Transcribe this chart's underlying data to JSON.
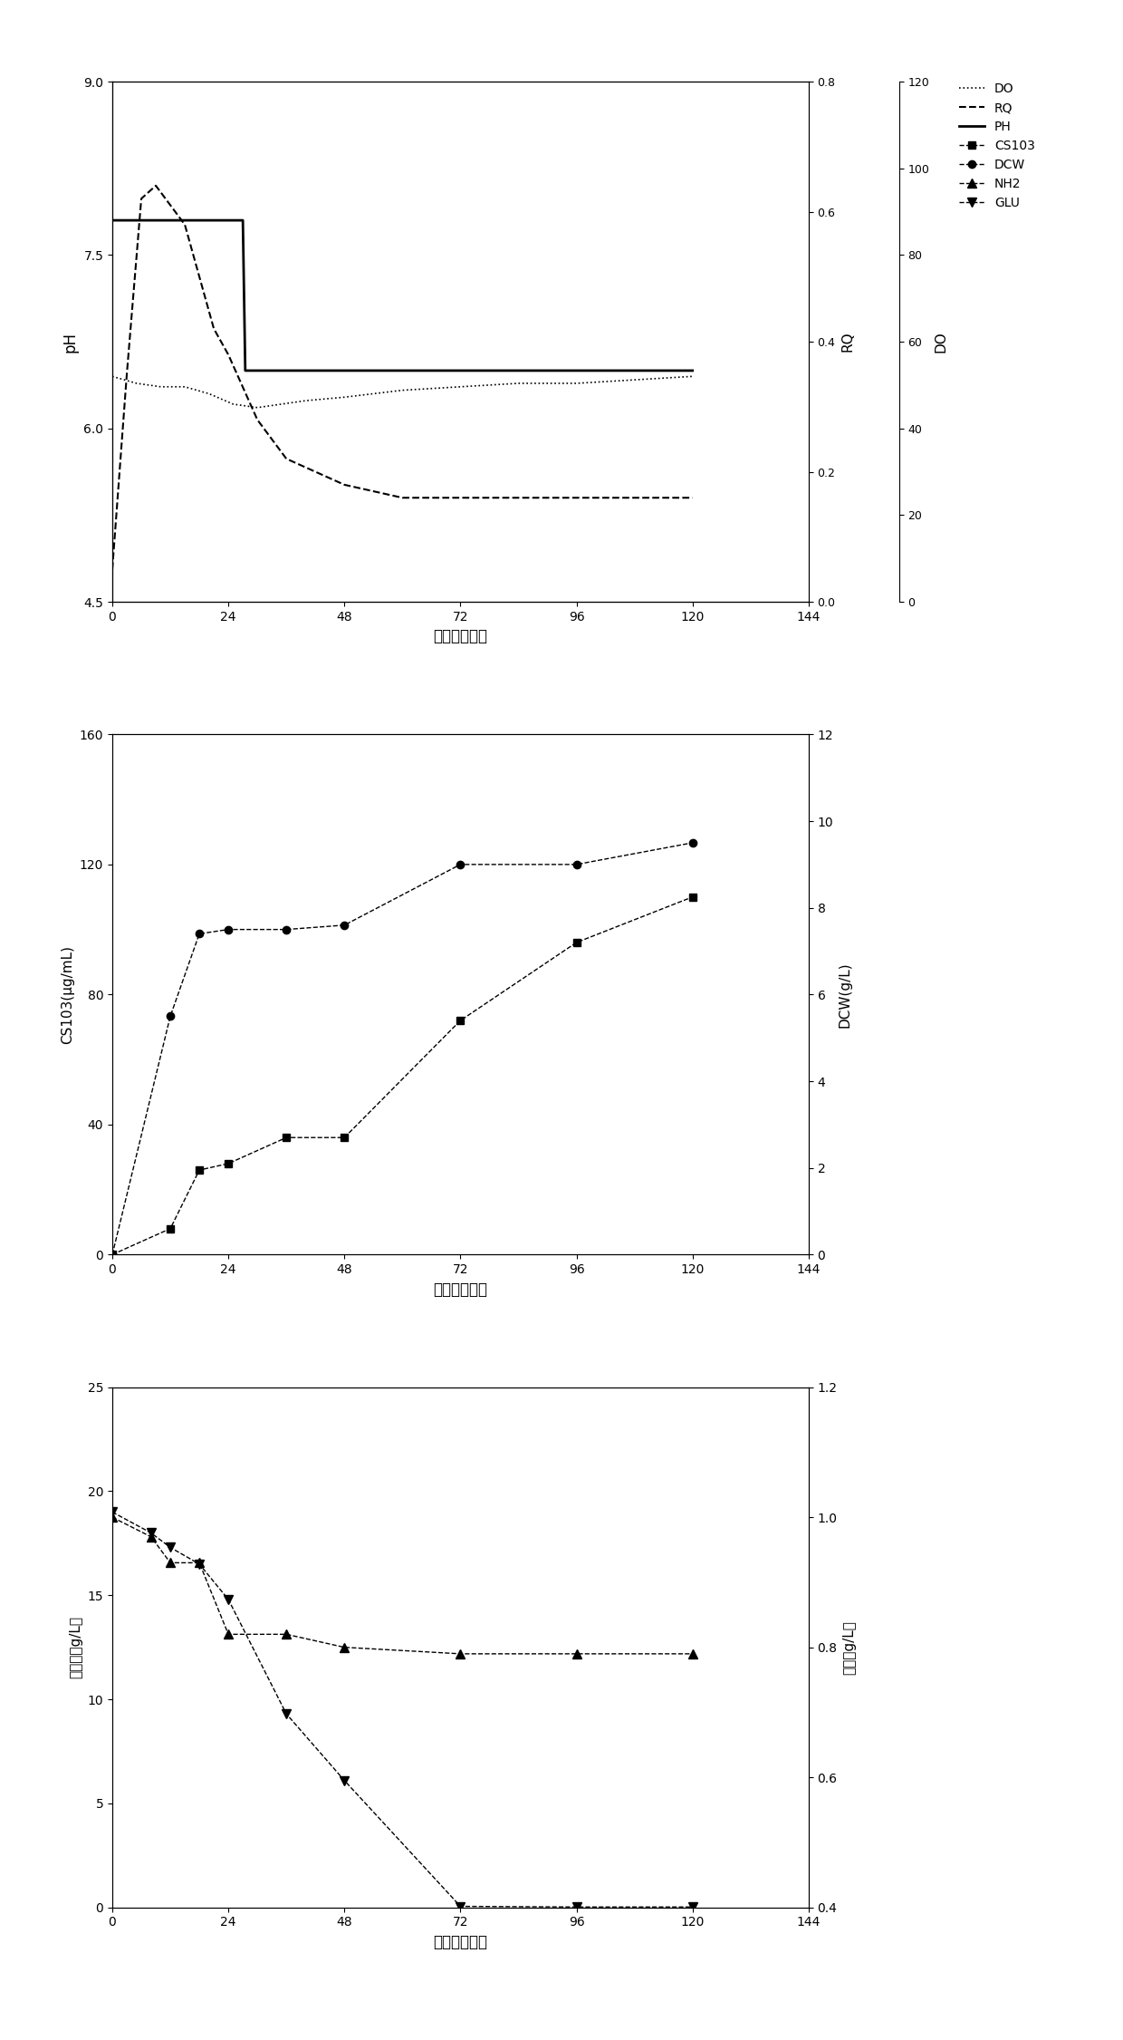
{
  "plot1": {
    "title": "",
    "xlabel": "时间（小时）",
    "ylabel_left": "pH",
    "ylabel_right1": "RQ",
    "ylabel_right2": "DO",
    "xlim": [
      0,
      144
    ],
    "xticks": [
      0,
      24,
      48,
      72,
      96,
      120,
      144
    ],
    "ylim_left": [
      4.5,
      9.0
    ],
    "yticks_left": [
      4.5,
      6.0,
      7.5,
      9.0
    ],
    "ylim_rq": [
      0.0,
      0.8
    ],
    "yticks_rq": [
      0.0,
      0.2,
      0.4,
      0.6,
      0.8
    ],
    "ylim_do": [
      0,
      120
    ],
    "yticks_do": [
      0,
      20,
      40,
      60,
      80,
      100,
      120
    ],
    "ph_x": [
      0,
      0.5,
      27,
      27.5,
      120
    ],
    "ph_y": [
      7.8,
      7.8,
      7.8,
      6.5,
      6.5
    ],
    "do_x": [
      0,
      5,
      10,
      15,
      20,
      25,
      30,
      35,
      40,
      48,
      60,
      72,
      84,
      96,
      108,
      120
    ],
    "do_y": [
      65,
      63,
      62,
      62,
      60,
      57,
      56,
      57,
      58,
      59,
      61,
      62,
      63,
      63,
      64,
      65
    ],
    "rq_x": [
      0,
      3,
      6,
      9,
      12,
      15,
      18,
      21,
      24,
      30,
      36,
      48,
      60,
      72,
      84,
      96,
      108,
      120
    ],
    "rq_y": [
      0.05,
      0.35,
      0.62,
      0.64,
      0.61,
      0.58,
      0.5,
      0.42,
      0.38,
      0.28,
      0.22,
      0.18,
      0.16,
      0.16,
      0.16,
      0.16,
      0.16,
      0.16
    ],
    "legend_items": [
      "DO",
      "RQ",
      "PH",
      "CS103",
      "DCW",
      "NH2",
      "GLU"
    ]
  },
  "plot2": {
    "xlabel": "时间（小时）",
    "ylabel_left": "CS103(μg/mL)",
    "ylabel_right": "DCW(g/L)",
    "xlim": [
      0,
      144
    ],
    "xticks": [
      0,
      24,
      48,
      72,
      96,
      120,
      144
    ],
    "ylim_left": [
      0,
      160
    ],
    "yticks_left": [
      0,
      40,
      80,
      120,
      160
    ],
    "ylim_right": [
      0,
      12
    ],
    "yticks_right": [
      0,
      2,
      4,
      6,
      8,
      10,
      12
    ],
    "cs103_x": [
      0,
      12,
      18,
      24,
      36,
      48,
      72,
      96,
      120
    ],
    "cs103_y": [
      0,
      8,
      26,
      28,
      36,
      36,
      72,
      96,
      110
    ],
    "dcw_x": [
      0,
      12,
      18,
      24,
      36,
      48,
      72,
      96,
      120
    ],
    "dcw_y": [
      0,
      5.5,
      7.4,
      7.5,
      7.5,
      7.6,
      9.0,
      9.0,
      9.5
    ]
  },
  "plot3": {
    "xlabel": "时间（小时）",
    "ylabel_left": "葡萄糖（g/L）",
    "ylabel_right": "氨氮（g/L）",
    "xlim": [
      0,
      144
    ],
    "xticks": [
      0,
      24,
      48,
      72,
      96,
      120,
      144
    ],
    "ylim_left": [
      0,
      25
    ],
    "yticks_left": [
      0,
      5,
      10,
      15,
      20,
      25
    ],
    "ylim_right": [
      0.4,
      1.2
    ],
    "yticks_right": [
      0.4,
      0.6,
      0.8,
      1.0,
      1.2
    ],
    "glu_x": [
      0,
      8,
      12,
      18,
      24,
      36,
      48,
      72,
      96,
      120
    ],
    "glu_y": [
      19.0,
      18.0,
      17.3,
      16.5,
      14.8,
      9.3,
      6.1,
      0.05,
      0.02,
      0.02
    ],
    "nh2_x": [
      0,
      8,
      12,
      18,
      24,
      36,
      48,
      72,
      96,
      120
    ],
    "nh2_y": [
      1.0,
      0.97,
      0.93,
      0.93,
      0.82,
      0.82,
      0.8,
      0.79,
      0.79,
      0.79
    ]
  }
}
